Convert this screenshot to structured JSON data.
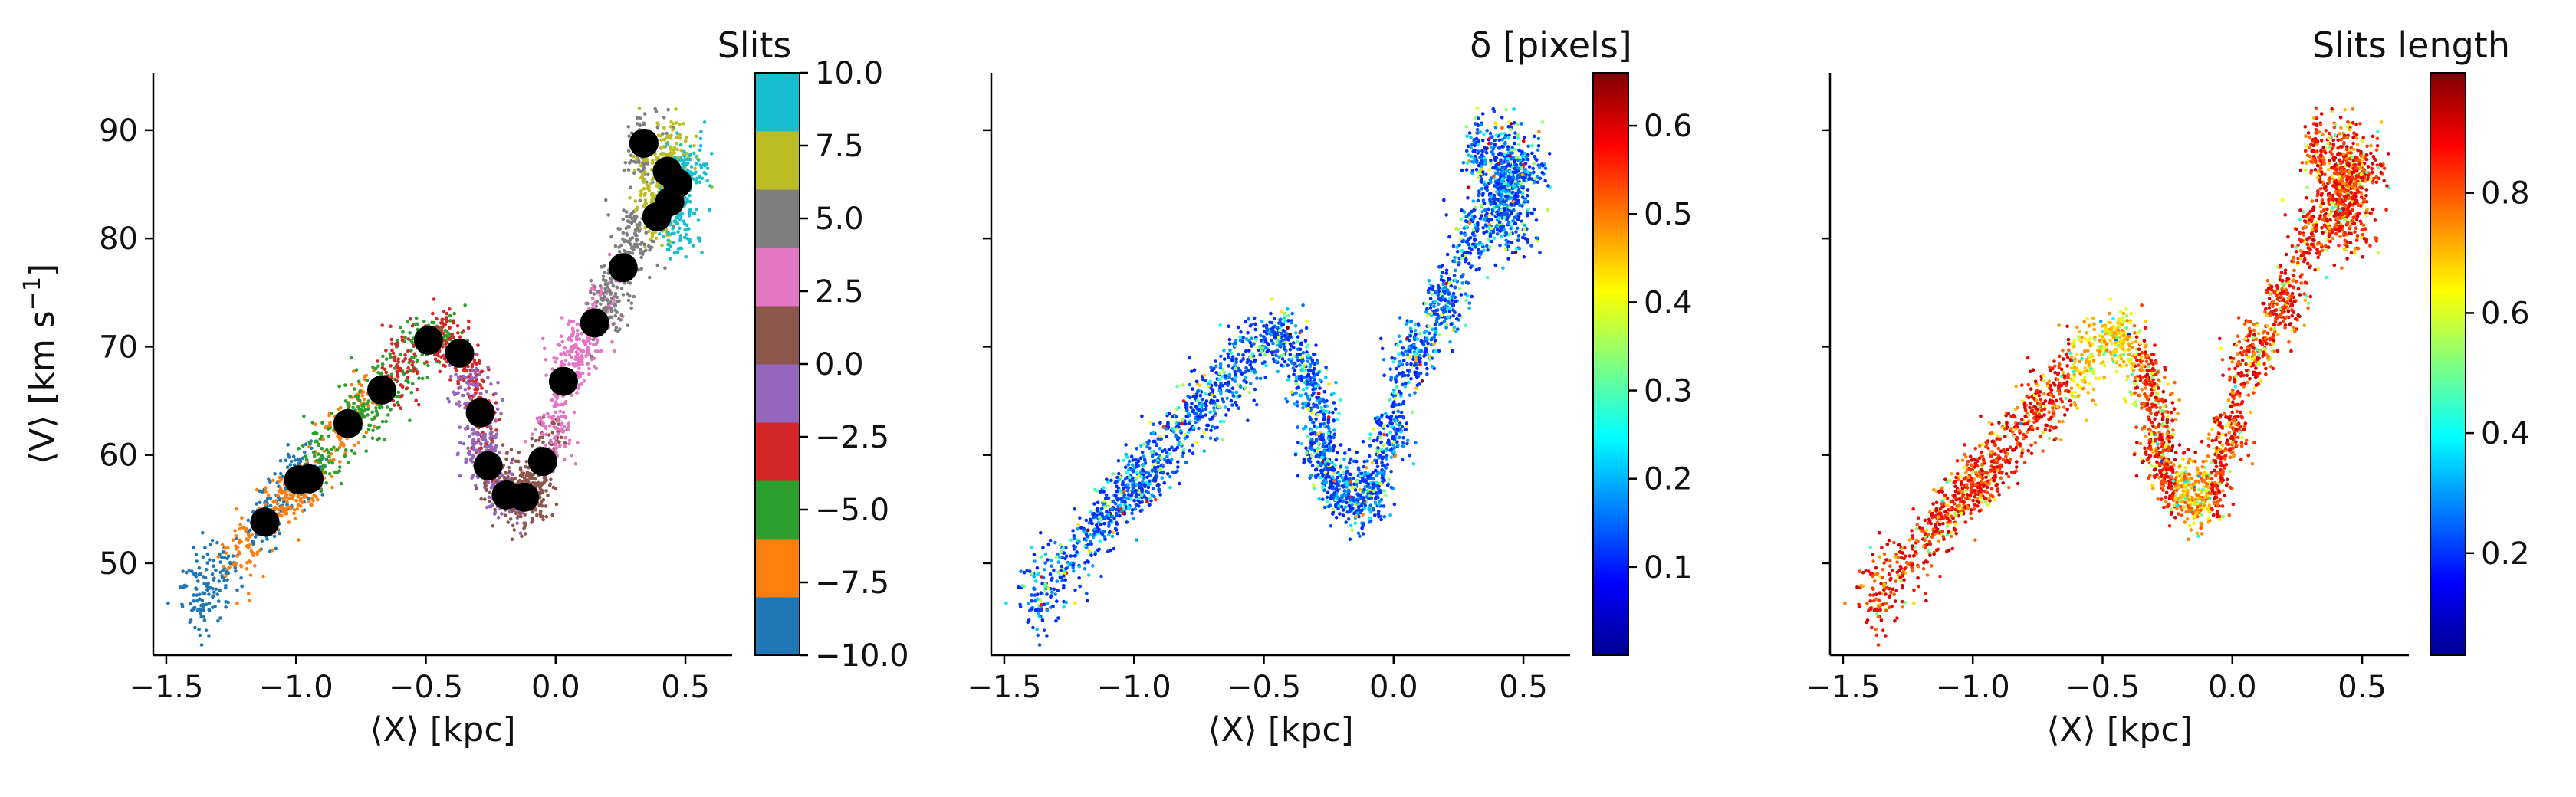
{
  "figure": {
    "y_axis_label_main": "⟨V⟩ [km s",
    "y_axis_label_sup": "−1",
    "y_axis_label_end": "]"
  },
  "chart_data": [
    {
      "type": "scatter",
      "panel": "left",
      "xlabel": "⟨X⟩ [kpc]",
      "ylabel": "⟨V⟩ [km s−1]",
      "xlim": [
        -1.55,
        0.68
      ],
      "ylim": [
        41.5,
        95.3
      ],
      "x_ticks": [
        -1.5,
        -1.0,
        -0.5,
        0.0,
        0.5
      ],
      "x_tick_labels": [
        "−1.5",
        "−1.0",
        "−0.5",
        "0.0",
        "0.5"
      ],
      "y_ticks": [
        50,
        60,
        70,
        80,
        90
      ],
      "y_tick_labels": [
        "50",
        "60",
        "70",
        "80",
        "90"
      ],
      "colorbar": {
        "label": "Slits",
        "kind": "discrete",
        "range": [
          -10.0,
          10.0
        ],
        "ticks": [
          -10.0,
          -7.5,
          -5.0,
          -2.5,
          0.0,
          2.5,
          5.0,
          7.5,
          10.0
        ],
        "tick_labels": [
          "−10.0",
          "−7.5",
          "−5.0",
          "−2.5",
          "0.0",
          "2.5",
          "5.0",
          "7.5",
          "10.0"
        ],
        "colors": [
          "#1f77b4",
          "#ff7f0e",
          "#2ca02c",
          "#d62728",
          "#9467bd",
          "#8c564b",
          "#e377c2",
          "#7f7f7f",
          "#bcbd22",
          "#17becf"
        ]
      },
      "point_cloud": "dense per-slit scatter along the rotation track; points colored by slit index",
      "slit_centers": [
        {
          "x": -1.12,
          "y": 53.8
        },
        {
          "x": -0.99,
          "y": 57.7
        },
        {
          "x": -0.95,
          "y": 57.8
        },
        {
          "x": -0.8,
          "y": 62.9
        },
        {
          "x": -0.67,
          "y": 66.0
        },
        {
          "x": -0.49,
          "y": 70.6
        },
        {
          "x": -0.37,
          "y": 69.4
        },
        {
          "x": -0.29,
          "y": 63.9
        },
        {
          "x": -0.26,
          "y": 59.0
        },
        {
          "x": -0.19,
          "y": 56.3
        },
        {
          "x": -0.12,
          "y": 56.1
        },
        {
          "x": -0.05,
          "y": 59.4
        },
        {
          "x": 0.03,
          "y": 66.8
        },
        {
          "x": 0.15,
          "y": 72.2
        },
        {
          "x": 0.26,
          "y": 77.3
        },
        {
          "x": 0.34,
          "y": 88.8
        },
        {
          "x": 0.39,
          "y": 82.0
        },
        {
          "x": 0.43,
          "y": 86.2
        },
        {
          "x": 0.44,
          "y": 83.4
        },
        {
          "x": 0.47,
          "y": 85.1
        }
      ]
    },
    {
      "type": "scatter",
      "panel": "middle",
      "xlabel": "⟨X⟩ [kpc]",
      "xlim": [
        -1.55,
        0.68
      ],
      "ylim": [
        41.5,
        95.3
      ],
      "x_ticks": [
        -1.5,
        -1.0,
        -0.5,
        0.0,
        0.5
      ],
      "x_tick_labels": [
        "−1.5",
        "−1.0",
        "−0.5",
        "0.0",
        "0.5"
      ],
      "colorbar": {
        "label": "δ [pixels]",
        "kind": "continuous",
        "colormap": "jet",
        "range": [
          0.0,
          0.66
        ],
        "ticks": [
          0.1,
          0.2,
          0.3,
          0.4,
          0.5,
          0.6
        ],
        "tick_labels": [
          "0.1",
          "0.2",
          "0.3",
          "0.4",
          "0.5",
          "0.6"
        ]
      },
      "point_cloud": "same points as left panel colored by δ; mostly 0.05–0.2 with scattered higher values at edges"
    },
    {
      "type": "scatter",
      "panel": "right",
      "xlabel": "⟨X⟩ [kpc]",
      "xlim": [
        -1.55,
        0.68
      ],
      "ylim": [
        41.5,
        95.3
      ],
      "x_ticks": [
        -1.5,
        -1.0,
        -0.5,
        0.0,
        0.5
      ],
      "x_tick_labels": [
        "−1.5",
        "−1.0",
        "−0.5",
        "0.0",
        "0.5"
      ],
      "colorbar": {
        "label": "Slits length",
        "kind": "continuous",
        "colormap": "jet",
        "range": [
          0.03,
          1.0
        ],
        "ticks": [
          0.2,
          0.4,
          0.6,
          0.8
        ],
        "tick_labels": [
          "0.2",
          "0.4",
          "0.6",
          "0.8"
        ]
      },
      "point_cloud": "same points colored by slit length; mostly 0.7–1.0, lower (0.4–0.7) near X≈−0.5 and X≈−0.15"
    }
  ]
}
